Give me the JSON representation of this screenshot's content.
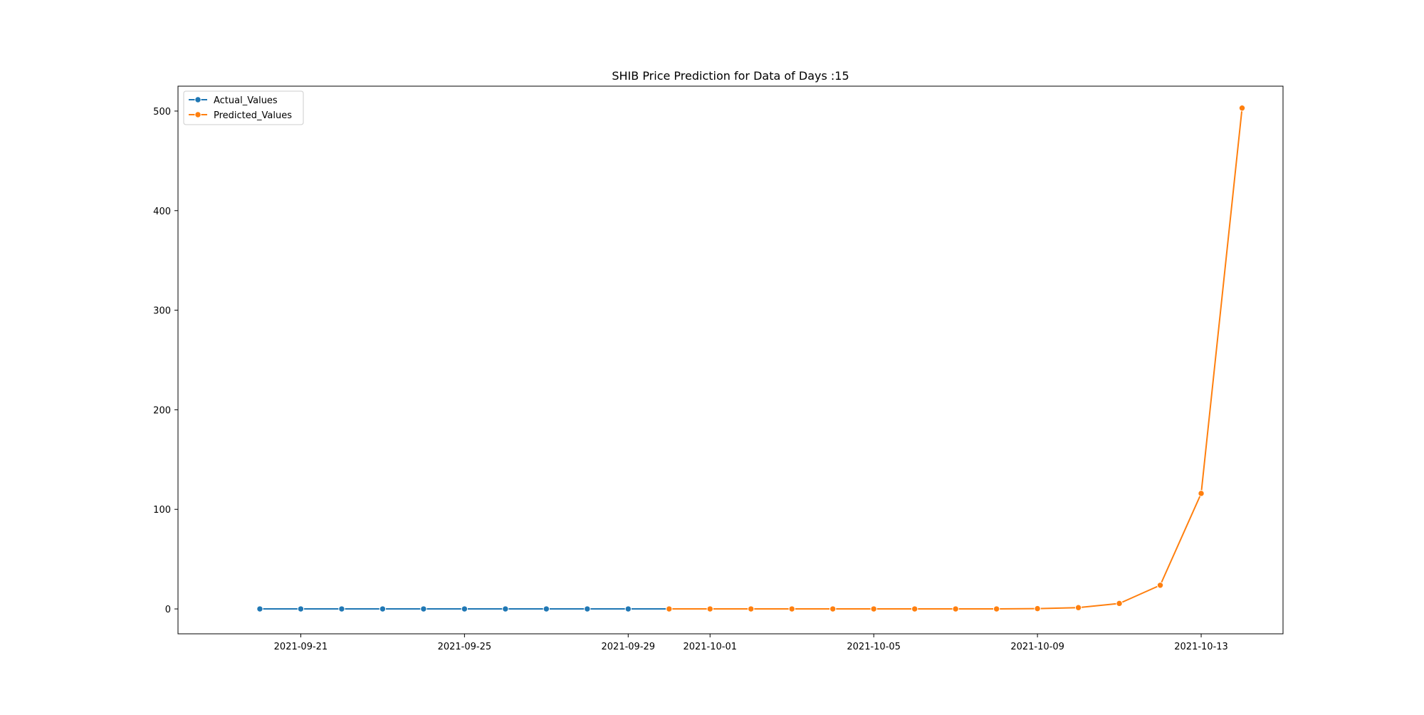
{
  "chart_data": {
    "type": "line",
    "title": "SHIB Price Prediction for Data of Days :15",
    "xlabel": "",
    "ylabel": "",
    "x_type": "date",
    "xlim": [
      "2021-09-18",
      "2021-10-15"
    ],
    "ylim": [
      -25,
      525
    ],
    "x_ticks": [
      "2021-09-21",
      "2021-09-25",
      "2021-09-29",
      "2021-10-01",
      "2021-10-05",
      "2021-10-09",
      "2021-10-13"
    ],
    "y_ticks": [
      0,
      100,
      200,
      300,
      400,
      500
    ],
    "grid": false,
    "legend_position": "top-left",
    "series": [
      {
        "name": "Actual_Values",
        "color": "#1f77b4",
        "marker": "circle",
        "points": [
          {
            "x": "2021-09-20",
            "y": 0
          },
          {
            "x": "2021-09-21",
            "y": 0
          },
          {
            "x": "2021-09-22",
            "y": 0
          },
          {
            "x": "2021-09-23",
            "y": 0
          },
          {
            "x": "2021-09-24",
            "y": 0
          },
          {
            "x": "2021-09-25",
            "y": 0
          },
          {
            "x": "2021-09-26",
            "y": 0
          },
          {
            "x": "2021-09-27",
            "y": 0
          },
          {
            "x": "2021-09-28",
            "y": 0
          },
          {
            "x": "2021-09-29",
            "y": 0
          },
          {
            "x": "2021-09-30",
            "y": 0
          }
        ]
      },
      {
        "name": "Predicted_Values",
        "color": "#ff7f0e",
        "marker": "circle",
        "points": [
          {
            "x": "2021-09-30",
            "y": 0
          },
          {
            "x": "2021-10-01",
            "y": 0
          },
          {
            "x": "2021-10-02",
            "y": 0
          },
          {
            "x": "2021-10-03",
            "y": 0
          },
          {
            "x": "2021-10-04",
            "y": 0
          },
          {
            "x": "2021-10-05",
            "y": 0
          },
          {
            "x": "2021-10-06",
            "y": 0
          },
          {
            "x": "2021-10-07",
            "y": 0
          },
          {
            "x": "2021-10-08",
            "y": 0
          },
          {
            "x": "2021-10-09",
            "y": 0.3
          },
          {
            "x": "2021-10-10",
            "y": 1.3
          },
          {
            "x": "2021-10-11",
            "y": 5.5
          },
          {
            "x": "2021-10-12",
            "y": 23.8
          },
          {
            "x": "2021-10-13",
            "y": 116
          },
          {
            "x": "2021-10-14",
            "y": 503
          }
        ]
      }
    ]
  }
}
